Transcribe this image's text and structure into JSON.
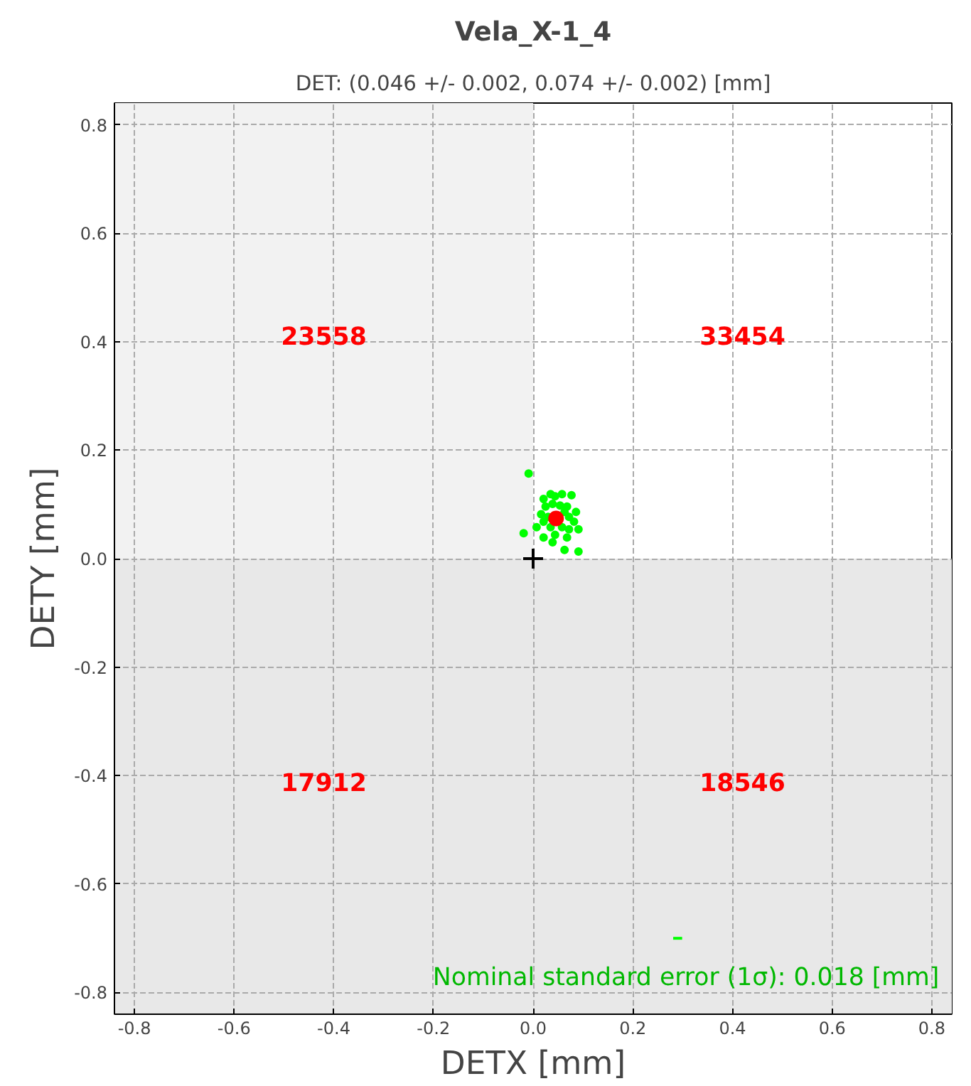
{
  "chart_data": {
    "type": "scatter",
    "title": "Vela_X-1_4",
    "subtitle": "DET: (0.046 +/- 0.002, 0.074 +/- 0.002) [mm]",
    "xlabel": "DETX [mm]",
    "ylabel": "DETY [mm]",
    "series": [
      {
        "color": "#00ff00",
        "marker": "circle",
        "x": [
          -0.009,
          0.021,
          0.035,
          0.044,
          0.058,
          0.077,
          0.025,
          0.039,
          0.054,
          0.068,
          0.016,
          0.03,
          0.063,
          0.072,
          0.082,
          0.021,
          0.035,
          0.058,
          0.072,
          0.091,
          0.021,
          0.044,
          0.068,
          0.063,
          0.091,
          -0.019,
          0.007,
          0.086,
          0.039
        ],
        "values": [
          0.157,
          0.11,
          0.119,
          0.115,
          0.119,
          0.117,
          0.096,
          0.101,
          0.098,
          0.096,
          0.082,
          0.077,
          0.086,
          0.077,
          0.068,
          0.068,
          0.058,
          0.058,
          0.054,
          0.054,
          0.039,
          0.044,
          0.039,
          0.016,
          0.013,
          0.047,
          0.058,
          0.086,
          0.03
        ]
      },
      {
        "color": "#ff0000",
        "marker": "circle",
        "x": [
          0.046
        ],
        "values": [
          0.074
        ]
      },
      {
        "color": "#000000",
        "marker": "cross",
        "x": [
          0.0
        ],
        "values": [
          0.0
        ]
      },
      {
        "type": "line",
        "color": "#00ff00",
        "x": [
          0.281,
          0.299
        ],
        "values": [
          -0.7,
          -0.7
        ]
      }
    ],
    "xlim": [
      -0.84,
      0.84
    ],
    "ylim": [
      -0.84,
      0.84
    ],
    "xticks": [
      {
        "value": -0.8,
        "label": "-0.8"
      },
      {
        "value": -0.6,
        "label": "-0.6"
      },
      {
        "value": -0.4,
        "label": "-0.4"
      },
      {
        "value": -0.2,
        "label": "-0.2"
      },
      {
        "value": 0,
        "label": "0.0"
      },
      {
        "value": 0.2,
        "label": "0.2"
      },
      {
        "value": 0.4,
        "label": "0.4"
      },
      {
        "value": 0.6,
        "label": "0.6"
      },
      {
        "value": 0.8,
        "label": "0.8"
      }
    ],
    "yticks": [
      {
        "value": -0.8,
        "label": "-0.8"
      },
      {
        "value": -0.6,
        "label": "-0.6"
      },
      {
        "value": -0.4,
        "label": "-0.4"
      },
      {
        "value": -0.2,
        "label": "-0.2"
      },
      {
        "value": 0,
        "label": "0.0"
      },
      {
        "value": 0.2,
        "label": "0.2"
      },
      {
        "value": 0.4,
        "label": "0.4"
      },
      {
        "value": 0.6,
        "label": "0.6"
      },
      {
        "value": 0.8,
        "label": "0.8"
      }
    ],
    "bands": [
      {
        "axis": "x",
        "from": -0.84,
        "to": 0,
        "color": "#f2f2f2"
      },
      {
        "axis": "y",
        "from": -0.84,
        "to": 0,
        "color": "#e8e8e8"
      }
    ],
    "annotations": [
      "23558",
      "33454",
      "17912",
      "18546",
      "Nominal standard error (1σ): 0.018 [mm]"
    ],
    "grid": true
  }
}
